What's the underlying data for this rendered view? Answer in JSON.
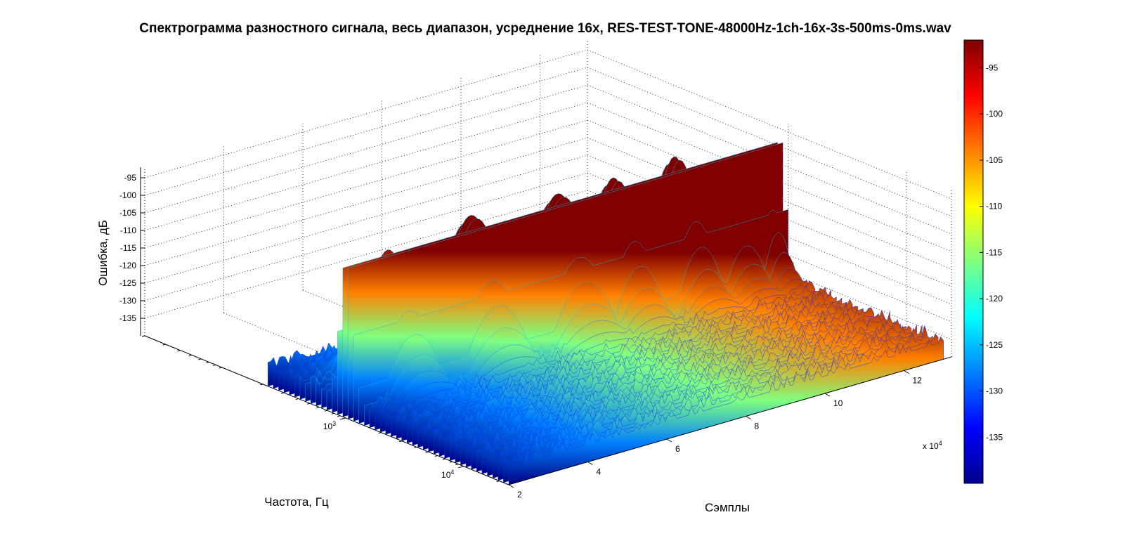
{
  "chart_data": {
    "type": "surface3d",
    "title": "Спектрограмма разностного сигнала, весь диапазон, усреднение 16x, RES-TEST-TONE-48000Hz-1ch-16x-3s-500ms-0ms.wav",
    "xlabel": "Сэмплы",
    "ylabel": "Частота, Гц",
    "zlabel": "Ошибка, дБ",
    "x_exponent_label": "x 10",
    "x_exponent_power": "4",
    "x_scale": 10000,
    "xlim": [
      2,
      13.2
    ],
    "x_ticks": [
      "2",
      "4",
      "6",
      "8",
      "10",
      "12"
    ],
    "y_scale": "log",
    "ylim": [
      20,
      24000
    ],
    "y_ticks": [
      {
        "base": "10",
        "power": "3",
        "value": 1000
      },
      {
        "base": "10",
        "power": "4",
        "value": 10000
      }
    ],
    "zlim": [
      -140,
      -92
    ],
    "z_ticks": [
      "-95",
      "-100",
      "-105",
      "-110",
      "-115",
      "-120",
      "-125",
      "-130",
      "-135"
    ],
    "colorbar": {
      "colormap": "jet",
      "range": [
        -140,
        -92
      ],
      "ticks": [
        "-95",
        "-100",
        "-105",
        "-110",
        "-115",
        "-120",
        "-125",
        "-130",
        "-135"
      ]
    },
    "grid": true,
    "noise_floor_db": -135,
    "peaks": [
      {
        "freq_hz": 1000,
        "x_start": 2.0,
        "x_end": 13.0,
        "level_db": -94,
        "shape": "ridge"
      },
      {
        "freq_hz": 800,
        "x_start": 2.6,
        "x_end": 4.2,
        "level_db": -98,
        "shape": "hump"
      },
      {
        "freq_hz": 800,
        "x_start": 4.6,
        "x_end": 6.4,
        "level_db": -95,
        "shape": "hump"
      },
      {
        "freq_hz": 800,
        "x_start": 6.8,
        "x_end": 8.6,
        "level_db": -96,
        "shape": "hump"
      },
      {
        "freq_hz": 800,
        "x_start": 8.4,
        "x_end": 9.8,
        "level_db": -96,
        "shape": "hump"
      },
      {
        "freq_hz": 800,
        "x_start": 10.0,
        "x_end": 11.3,
        "level_db": -95,
        "shape": "hump"
      },
      {
        "freq_hz": 800,
        "x_start": 11.2,
        "x_end": 12.4,
        "level_db": -103,
        "shape": "hump"
      },
      {
        "freq_hz": 800,
        "x_start": 12.2,
        "x_end": 13.0,
        "level_db": -100,
        "shape": "hump"
      }
    ]
  }
}
